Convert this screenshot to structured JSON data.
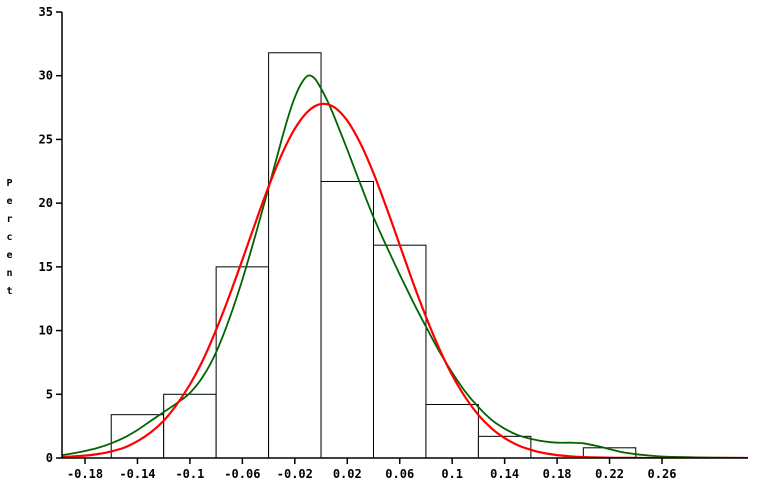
{
  "chart_data": {
    "type": "bar",
    "subtype": "histogram-with-density-overlays",
    "title": "",
    "xlabel": "",
    "ylabel": "Percent",
    "xlim": [
      -0.198,
      0.325
    ],
    "ylim": [
      0,
      35
    ],
    "grid": false,
    "legend": "none",
    "xticks": [
      -0.18,
      -0.14,
      -0.1,
      -0.06,
      -0.02,
      0.02,
      0.06,
      0.1,
      0.14,
      0.18,
      0.22,
      0.26
    ],
    "xtick_labels": [
      "-0.18",
      "-0.14",
      "-0.1",
      "-0.06",
      "-0.02",
      "0.02",
      "0.06",
      "0.1",
      "0.14",
      "0.18",
      "0.22",
      "0.26"
    ],
    "yticks": [
      0,
      5,
      10,
      15,
      20,
      25,
      30,
      35
    ],
    "ytick_labels": [
      "0",
      "5",
      "10",
      "15",
      "20",
      "25",
      "30",
      "35"
    ],
    "histogram": {
      "bin_width": 0.04,
      "bar_fill": "#ffffff",
      "bar_stroke": "#000000",
      "bins": [
        {
          "x0": -0.16,
          "x1": -0.12,
          "percent": 3.4
        },
        {
          "x0": -0.12,
          "x1": -0.08,
          "percent": 5.0
        },
        {
          "x0": -0.08,
          "x1": -0.04,
          "percent": 15.0
        },
        {
          "x0": -0.04,
          "x1": 0.0,
          "percent": 31.8
        },
        {
          "x0": 0.0,
          "x1": 0.04,
          "percent": 21.7
        },
        {
          "x0": 0.04,
          "x1": 0.08,
          "percent": 16.7
        },
        {
          "x0": 0.08,
          "x1": 0.12,
          "percent": 4.2
        },
        {
          "x0": 0.12,
          "x1": 0.16,
          "percent": 1.7
        },
        {
          "x0": 0.2,
          "x1": 0.24,
          "percent": 0.8
        }
      ]
    },
    "series": [
      {
        "name": "kernel-density-curve",
        "color": "#006400",
        "width": 1.8,
        "points": [
          [
            -0.21,
            0.1
          ],
          [
            -0.2,
            0.2
          ],
          [
            -0.19,
            0.35
          ],
          [
            -0.18,
            0.55
          ],
          [
            -0.17,
            0.8
          ],
          [
            -0.16,
            1.15
          ],
          [
            -0.15,
            1.6
          ],
          [
            -0.14,
            2.2
          ],
          [
            -0.13,
            2.9
          ],
          [
            -0.12,
            3.6
          ],
          [
            -0.11,
            4.3
          ],
          [
            -0.1,
            5.1
          ],
          [
            -0.09,
            6.4
          ],
          [
            -0.08,
            8.3
          ],
          [
            -0.07,
            10.9
          ],
          [
            -0.06,
            14.0
          ],
          [
            -0.05,
            17.5
          ],
          [
            -0.04,
            21.2
          ],
          [
            -0.03,
            25.0
          ],
          [
            -0.025,
            26.8
          ],
          [
            -0.02,
            28.3
          ],
          [
            -0.015,
            29.4
          ],
          [
            -0.01,
            30.0
          ],
          [
            -0.005,
            29.8
          ],
          [
            0.0,
            29.0
          ],
          [
            0.005,
            28.0
          ],
          [
            0.01,
            26.8
          ],
          [
            0.02,
            24.2
          ],
          [
            0.03,
            21.5
          ],
          [
            0.04,
            18.9
          ],
          [
            0.05,
            16.6
          ],
          [
            0.06,
            14.4
          ],
          [
            0.07,
            12.3
          ],
          [
            0.08,
            10.3
          ],
          [
            0.09,
            8.4
          ],
          [
            0.1,
            6.7
          ],
          [
            0.11,
            5.2
          ],
          [
            0.12,
            4.0
          ],
          [
            0.13,
            3.0
          ],
          [
            0.14,
            2.3
          ],
          [
            0.15,
            1.8
          ],
          [
            0.16,
            1.5
          ],
          [
            0.17,
            1.3
          ],
          [
            0.18,
            1.2
          ],
          [
            0.19,
            1.2
          ],
          [
            0.2,
            1.15
          ],
          [
            0.21,
            0.95
          ],
          [
            0.22,
            0.7
          ],
          [
            0.23,
            0.45
          ],
          [
            0.24,
            0.3
          ],
          [
            0.25,
            0.2
          ],
          [
            0.26,
            0.12
          ],
          [
            0.28,
            0.06
          ],
          [
            0.3,
            0.03
          ],
          [
            0.33,
            0.0
          ]
        ]
      },
      {
        "name": "normal-curve",
        "color": "#ff0000",
        "width": 2.2,
        "points": [
          [
            -0.2,
            0.06
          ],
          [
            -0.19,
            0.12
          ],
          [
            -0.18,
            0.19
          ],
          [
            -0.17,
            0.31
          ],
          [
            -0.16,
            0.52
          ],
          [
            -0.15,
            0.82
          ],
          [
            -0.14,
            1.32
          ],
          [
            -0.13,
            2.0
          ],
          [
            -0.12,
            2.93
          ],
          [
            -0.11,
            4.2
          ],
          [
            -0.1,
            5.77
          ],
          [
            -0.09,
            7.7
          ],
          [
            -0.08,
            10.06
          ],
          [
            -0.07,
            12.7
          ],
          [
            -0.06,
            15.55
          ],
          [
            -0.05,
            18.47
          ],
          [
            -0.04,
            21.29
          ],
          [
            -0.03,
            23.81
          ],
          [
            -0.02,
            25.84
          ],
          [
            -0.01,
            27.2
          ],
          [
            0.0,
            27.78
          ],
          [
            0.01,
            27.53
          ],
          [
            0.02,
            26.47
          ],
          [
            0.03,
            24.69
          ],
          [
            0.04,
            22.35
          ],
          [
            0.05,
            19.62
          ],
          [
            0.06,
            16.72
          ],
          [
            0.07,
            13.81
          ],
          [
            0.08,
            11.08
          ],
          [
            0.09,
            8.62
          ],
          [
            0.1,
            6.5
          ],
          [
            0.11,
            4.77
          ],
          [
            0.12,
            3.38
          ],
          [
            0.13,
            2.33
          ],
          [
            0.14,
            1.56
          ],
          [
            0.15,
            1.01
          ],
          [
            0.16,
            0.64
          ],
          [
            0.17,
            0.39
          ],
          [
            0.18,
            0.23
          ],
          [
            0.19,
            0.13
          ],
          [
            0.2,
            0.07
          ],
          [
            0.22,
            0.02
          ],
          [
            0.24,
            0.01
          ],
          [
            0.26,
            0.0
          ],
          [
            0.3,
            0.0
          ],
          [
            0.33,
            0.0
          ]
        ]
      }
    ],
    "axis_color": "#000000"
  }
}
